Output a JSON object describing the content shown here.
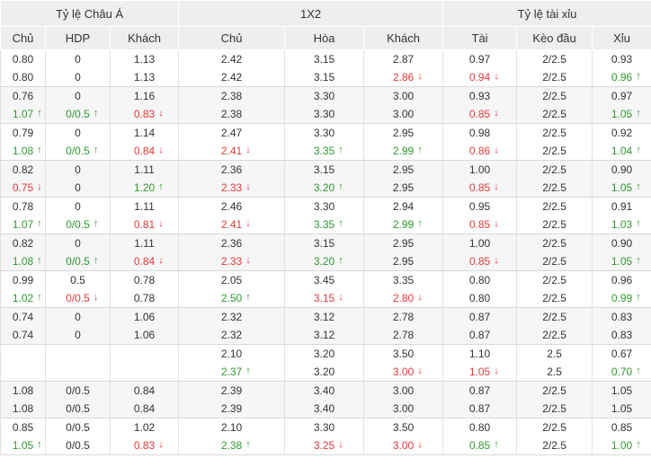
{
  "header": {
    "groups": [
      "Tỷ lệ Châu Á",
      "1X2",
      "Tỷ lệ tài xỉu"
    ],
    "columns": [
      "Chủ",
      "HDP",
      "Khách",
      "Chủ",
      "Hòa",
      "Khách",
      "Tài",
      "Kèo đầu",
      "Xỉu"
    ]
  },
  "arrows": {
    "up": "↑",
    "down": "↓"
  },
  "rows": [
    [
      [
        "0.80",
        ""
      ],
      [
        "0",
        ""
      ],
      [
        "1.13",
        ""
      ],
      [
        "2.42",
        ""
      ],
      [
        "3.15",
        ""
      ],
      [
        "2.87",
        ""
      ],
      [
        "0.97",
        ""
      ],
      [
        "2/2.5",
        ""
      ],
      [
        "0.93",
        ""
      ]
    ],
    [
      [
        "0.80",
        ""
      ],
      [
        "0",
        ""
      ],
      [
        "1.13",
        ""
      ],
      [
        "2.42",
        ""
      ],
      [
        "3.15",
        ""
      ],
      [
        "2.86",
        "down"
      ],
      [
        "0.94",
        "down"
      ],
      [
        "2/2.5",
        ""
      ],
      [
        "0.96",
        "up"
      ]
    ],
    [
      [
        "0.76",
        ""
      ],
      [
        "0",
        ""
      ],
      [
        "1.16",
        ""
      ],
      [
        "2.38",
        ""
      ],
      [
        "3.30",
        ""
      ],
      [
        "3.00",
        ""
      ],
      [
        "0.93",
        ""
      ],
      [
        "2/2.5",
        ""
      ],
      [
        "0.97",
        ""
      ]
    ],
    [
      [
        "1.07",
        "up"
      ],
      [
        "0/0.5",
        "up"
      ],
      [
        "0.83",
        "down"
      ],
      [
        "2.38",
        ""
      ],
      [
        "3.30",
        ""
      ],
      [
        "3.00",
        ""
      ],
      [
        "0.85",
        "down"
      ],
      [
        "2/2.5",
        ""
      ],
      [
        "1.05",
        "up"
      ]
    ],
    [
      [
        "0.79",
        ""
      ],
      [
        "0",
        ""
      ],
      [
        "1.14",
        ""
      ],
      [
        "2.47",
        ""
      ],
      [
        "3.30",
        ""
      ],
      [
        "2.95",
        ""
      ],
      [
        "0.98",
        ""
      ],
      [
        "2/2.5",
        ""
      ],
      [
        "0.92",
        ""
      ]
    ],
    [
      [
        "1.08",
        "up"
      ],
      [
        "0/0.5",
        "up"
      ],
      [
        "0.84",
        "down"
      ],
      [
        "2.41",
        "down"
      ],
      [
        "3.35",
        "up"
      ],
      [
        "2.99",
        "up"
      ],
      [
        "0.86",
        "down"
      ],
      [
        "2/2.5",
        ""
      ],
      [
        "1.04",
        "up"
      ]
    ],
    [
      [
        "0.82",
        ""
      ],
      [
        "0",
        ""
      ],
      [
        "1.11",
        ""
      ],
      [
        "2.36",
        ""
      ],
      [
        "3.15",
        ""
      ],
      [
        "2.95",
        ""
      ],
      [
        "1.00",
        ""
      ],
      [
        "2/2.5",
        ""
      ],
      [
        "0.90",
        ""
      ]
    ],
    [
      [
        "0.75",
        "down"
      ],
      [
        "0",
        ""
      ],
      [
        "1.20",
        "up"
      ],
      [
        "2.33",
        "down"
      ],
      [
        "3.20",
        "up"
      ],
      [
        "2.95",
        ""
      ],
      [
        "0.85",
        "down"
      ],
      [
        "2/2.5",
        ""
      ],
      [
        "1.05",
        "up"
      ]
    ],
    [
      [
        "0.78",
        ""
      ],
      [
        "0",
        ""
      ],
      [
        "1.11",
        ""
      ],
      [
        "2.46",
        ""
      ],
      [
        "3.30",
        ""
      ],
      [
        "2.94",
        ""
      ],
      [
        "0.95",
        ""
      ],
      [
        "2/2.5",
        ""
      ],
      [
        "0.91",
        ""
      ]
    ],
    [
      [
        "1.07",
        "up"
      ],
      [
        "0/0.5",
        "up"
      ],
      [
        "0.81",
        "down"
      ],
      [
        "2.41",
        "down"
      ],
      [
        "3.35",
        "up"
      ],
      [
        "2.99",
        "up"
      ],
      [
        "0.85",
        "down"
      ],
      [
        "2/2.5",
        ""
      ],
      [
        "1.03",
        "up"
      ]
    ],
    [
      [
        "0.82",
        ""
      ],
      [
        "0",
        ""
      ],
      [
        "1.11",
        ""
      ],
      [
        "2.36",
        ""
      ],
      [
        "3.15",
        ""
      ],
      [
        "2.95",
        ""
      ],
      [
        "1.00",
        ""
      ],
      [
        "2/2.5",
        ""
      ],
      [
        "0.90",
        ""
      ]
    ],
    [
      [
        "1.08",
        "up"
      ],
      [
        "0/0.5",
        "up"
      ],
      [
        "0.84",
        "down"
      ],
      [
        "2.33",
        "down"
      ],
      [
        "3.20",
        "up"
      ],
      [
        "2.95",
        ""
      ],
      [
        "0.85",
        "down"
      ],
      [
        "2/2.5",
        ""
      ],
      [
        "1.05",
        "up"
      ]
    ],
    [
      [
        "0.99",
        ""
      ],
      [
        "0.5",
        ""
      ],
      [
        "0.78",
        ""
      ],
      [
        "2.05",
        ""
      ],
      [
        "3.45",
        ""
      ],
      [
        "3.35",
        ""
      ],
      [
        "0.80",
        ""
      ],
      [
        "2/2.5",
        ""
      ],
      [
        "0.96",
        ""
      ]
    ],
    [
      [
        "1.02",
        "up"
      ],
      [
        "0/0.5",
        "down"
      ],
      [
        "0.78",
        ""
      ],
      [
        "2.50",
        "up"
      ],
      [
        "3.15",
        "down"
      ],
      [
        "2.80",
        "down"
      ],
      [
        "0.80",
        ""
      ],
      [
        "2/2.5",
        ""
      ],
      [
        "0.99",
        "up"
      ]
    ],
    [
      [
        "0.74",
        ""
      ],
      [
        "0",
        ""
      ],
      [
        "1.06",
        ""
      ],
      [
        "2.32",
        ""
      ],
      [
        "3.12",
        ""
      ],
      [
        "2.78",
        ""
      ],
      [
        "0.87",
        ""
      ],
      [
        "2/2.5",
        ""
      ],
      [
        "0.83",
        ""
      ]
    ],
    [
      [
        "0.74",
        ""
      ],
      [
        "0",
        ""
      ],
      [
        "1.06",
        ""
      ],
      [
        "2.32",
        ""
      ],
      [
        "3.12",
        ""
      ],
      [
        "2.78",
        ""
      ],
      [
        "0.87",
        ""
      ],
      [
        "2/2.5",
        ""
      ],
      [
        "0.83",
        ""
      ]
    ],
    [
      [
        "",
        ""
      ],
      [
        "",
        ""
      ],
      [
        "",
        ""
      ],
      [
        "2.10",
        ""
      ],
      [
        "3.20",
        ""
      ],
      [
        "3.50",
        ""
      ],
      [
        "1.10",
        ""
      ],
      [
        "2.5",
        ""
      ],
      [
        "0.67",
        ""
      ]
    ],
    [
      [
        "",
        ""
      ],
      [
        "",
        ""
      ],
      [
        "",
        ""
      ],
      [
        "2.37",
        "up"
      ],
      [
        "3.20",
        ""
      ],
      [
        "3.00",
        "down"
      ],
      [
        "1.05",
        "down"
      ],
      [
        "2.5",
        ""
      ],
      [
        "0.70",
        "up"
      ]
    ],
    [
      [
        "1.08",
        ""
      ],
      [
        "0/0.5",
        ""
      ],
      [
        "0.84",
        ""
      ],
      [
        "2.39",
        ""
      ],
      [
        "3.40",
        ""
      ],
      [
        "3.00",
        ""
      ],
      [
        "0.87",
        ""
      ],
      [
        "2/2.5",
        ""
      ],
      [
        "1.05",
        ""
      ]
    ],
    [
      [
        "1.08",
        ""
      ],
      [
        "0/0.5",
        ""
      ],
      [
        "0.84",
        ""
      ],
      [
        "2.39",
        ""
      ],
      [
        "3.40",
        ""
      ],
      [
        "3.00",
        ""
      ],
      [
        "0.87",
        ""
      ],
      [
        "2/2.5",
        ""
      ],
      [
        "1.05",
        ""
      ]
    ],
    [
      [
        "0.85",
        ""
      ],
      [
        "0/0.5",
        ""
      ],
      [
        "1.02",
        ""
      ],
      [
        "2.10",
        ""
      ],
      [
        "3.30",
        ""
      ],
      [
        "3.50",
        ""
      ],
      [
        "0.80",
        ""
      ],
      [
        "2/2.5",
        ""
      ],
      [
        "0.85",
        ""
      ]
    ],
    [
      [
        "1.05",
        "up"
      ],
      [
        "0/0.5",
        ""
      ],
      [
        "0.83",
        "down"
      ],
      [
        "2.38",
        "up"
      ],
      [
        "3.25",
        "down"
      ],
      [
        "3.00",
        "down"
      ],
      [
        "0.85",
        "up"
      ],
      [
        "2/2.5",
        ""
      ],
      [
        "1.00",
        "up"
      ]
    ]
  ]
}
